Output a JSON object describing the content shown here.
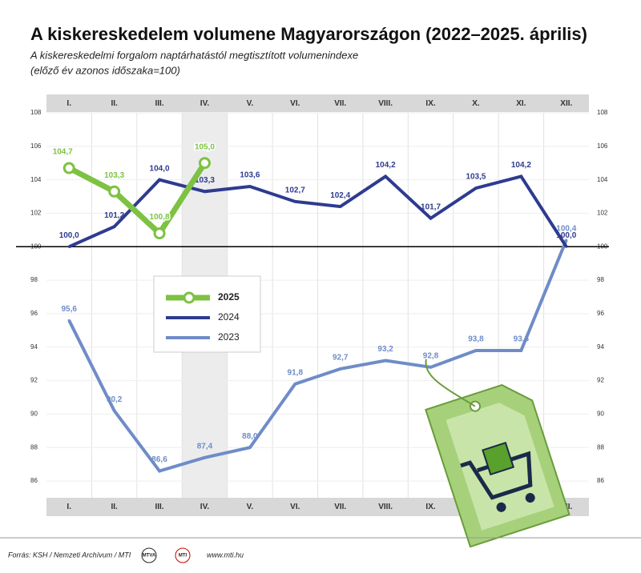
{
  "chart_data": {
    "type": "line",
    "title": "A kiskereskedelem volumene Magyarországon (2022–2025. április)",
    "subtitle": "A kiskereskedelmi forgalom naptárhatástól megtisztított volumenindexe",
    "subtitle2": "(előző év azonos időszaka=100)",
    "categories": [
      "I.",
      "II.",
      "III.",
      "IV.",
      "V.",
      "VI.",
      "VII.",
      "VIII.",
      "IX.",
      "X.",
      "XI.",
      "XII."
    ],
    "series": [
      {
        "name": "2025",
        "color": "#7dc242",
        "values": [
          104.7,
          103.3,
          100.8,
          105.0,
          null,
          null,
          null,
          null,
          null,
          null,
          null,
          null
        ],
        "value_labels": [
          "104,7",
          "103,3",
          "100,8",
          "105,0",
          null,
          null,
          null,
          null,
          null,
          null,
          null,
          null
        ]
      },
      {
        "name": "2024",
        "color": "#2e3b8f",
        "values": [
          100.0,
          101.2,
          104.0,
          103.3,
          103.6,
          102.7,
          102.4,
          104.2,
          101.7,
          103.5,
          104.2,
          100.0
        ],
        "value_labels": [
          "100,0",
          "101,2",
          "104,0",
          "103,3",
          "103,6",
          "102,7",
          "102,4",
          "104,2",
          "101,7",
          "103,5",
          "104,2",
          "100,0"
        ]
      },
      {
        "name": "2023",
        "color": "#6f8cc8",
        "values": [
          95.6,
          90.2,
          86.6,
          87.4,
          88.0,
          91.8,
          92.7,
          93.2,
          92.8,
          93.8,
          93.8,
          100.4
        ],
        "value_labels": [
          "95,6",
          "90,2",
          "86,6",
          "87,4",
          "88,0",
          "91,8",
          "92,7",
          "93,2",
          "92,8",
          "93,8",
          "93,8",
          "100,4"
        ]
      }
    ],
    "ylim": [
      85,
      108
    ],
    "yticks": [
      86,
      88,
      90,
      92,
      94,
      96,
      98,
      100,
      102,
      104,
      106,
      108
    ],
    "reference_line": 100,
    "highlight_category": 3,
    "grid": true
  },
  "footer": {
    "source": "Forrás: KSH / Nemzeti Archívum / MTI",
    "logo1": "MTVA",
    "logo2": "MTI",
    "website": "www.mti.hu"
  }
}
